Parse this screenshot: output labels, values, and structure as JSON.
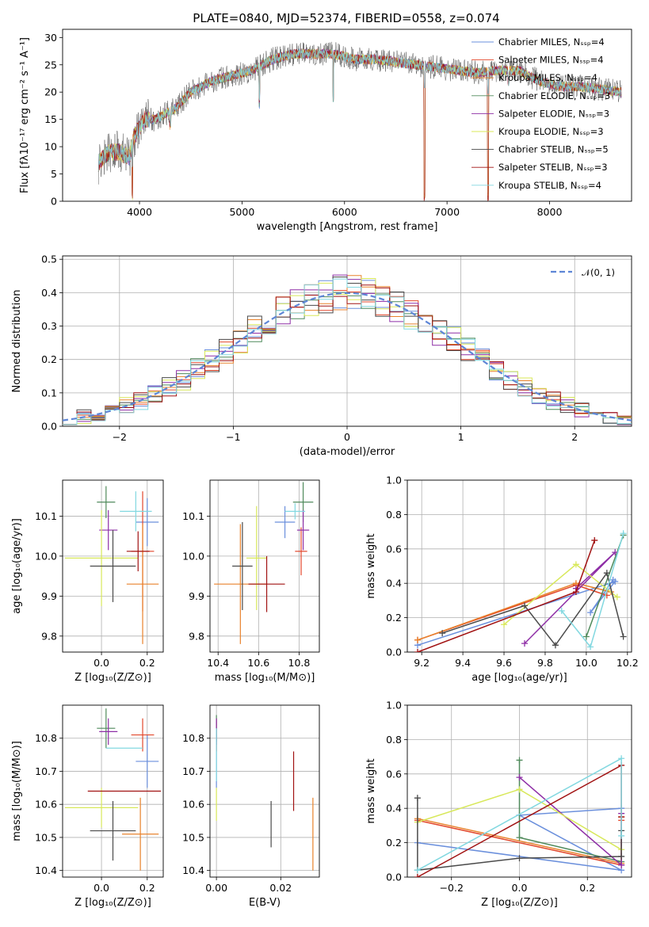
{
  "title": "PLATE=0840, MJD=52374, FIBERID=0558, z=0.074",
  "colors": [
    "#6a8fdc",
    "#e2472b",
    "#e8822b",
    "#4f8a5b",
    "#8e2ea6",
    "#d8e85a",
    "#4a4a4a",
    "#a11212",
    "#82d8e0"
  ],
  "chart_data": [
    {
      "id": "spectrum",
      "type": "line",
      "xlabel": "wavelength [Angstrom, rest frame]",
      "ylabel": "Flux [fλ10⁻¹⁷ erg cm⁻² s⁻¹ A⁻¹]",
      "xlim": [
        3250,
        8800
      ],
      "ylim": [
        0,
        31.5
      ],
      "xticks": [
        4000,
        5000,
        6000,
        7000,
        8000
      ],
      "yticks": [
        0,
        5,
        10,
        15,
        20,
        25,
        30
      ],
      "grid": false,
      "legend_position": "upper-right",
      "series": [
        {
          "name": "Chabrier MILES, Nₛₛₚ=4"
        },
        {
          "name": "Salpeter MILES, Nₛₛₚ=4"
        },
        {
          "name": "Kroupa MILES, Nₛₛₚ=4"
        },
        {
          "name": "Chabrier ELODIE, Nₛₛₚ=3"
        },
        {
          "name": "Salpeter ELODIE, Nₛₛₚ=3"
        },
        {
          "name": "Kroupa ELODIE, Nₛₛₚ=3"
        },
        {
          "name": "Chabrier STELIB, Nₛₛₚ=5"
        },
        {
          "name": "Salpeter STELIB, Nₛₛₚ=3"
        },
        {
          "name": "Kroupa STELIB, Nₛₛₚ=4"
        }
      ],
      "continuum": [
        [
          3600,
          7
        ],
        [
          3700,
          9
        ],
        [
          3800,
          9
        ],
        [
          3900,
          8
        ],
        [
          3950,
          12
        ],
        [
          4050,
          15
        ],
        [
          4150,
          15
        ],
        [
          4250,
          16
        ],
        [
          4350,
          17
        ],
        [
          4500,
          20
        ],
        [
          4700,
          22
        ],
        [
          4900,
          23
        ],
        [
          5100,
          24
        ],
        [
          5300,
          26
        ],
        [
          5500,
          27
        ],
        [
          5700,
          27
        ],
        [
          5900,
          27
        ],
        [
          6100,
          26
        ],
        [
          6300,
          26
        ],
        [
          6500,
          25.5
        ],
        [
          6700,
          25
        ],
        [
          6900,
          24.5
        ],
        [
          7100,
          24
        ],
        [
          7300,
          23.5
        ],
        [
          7500,
          24
        ],
        [
          7700,
          24
        ],
        [
          7900,
          22
        ],
        [
          8100,
          21
        ],
        [
          8300,
          21
        ],
        [
          8500,
          20.5
        ],
        [
          8700,
          20
        ]
      ],
      "dips": [
        [
          3930,
          0
        ],
        [
          4300,
          13
        ],
        [
          5170,
          17
        ],
        [
          5890,
          18
        ],
        [
          6780,
          0
        ],
        [
          7400,
          0
        ],
        [
          7600,
          21
        ]
      ]
    },
    {
      "id": "residuals",
      "type": "line",
      "xlabel": "(data-model)/error",
      "ylabel": "Normed distribution",
      "xlim": [
        -2.5,
        2.5
      ],
      "ylim": [
        0,
        0.51
      ],
      "xticks": [
        -2,
        -1,
        0,
        1,
        2
      ],
      "yticks": [
        0.0,
        0.1,
        0.2,
        0.3,
        0.4,
        0.5
      ],
      "grid": true,
      "legend_position": "upper-right",
      "normal_label": "𝒩(0, 1)",
      "normal": {
        "mu": 0,
        "sigma": 1
      }
    },
    {
      "id": "age-vs-Z",
      "type": "scatter",
      "xlabel": "Z [log₁₀(Z/Z⊙)]",
      "ylabel": "age  [log₁₀(age/yr)]",
      "xlim": [
        -0.17,
        0.27
      ],
      "ylim": [
        9.76,
        10.19
      ],
      "xticks": [
        0.0,
        0.2
      ],
      "yticks": [
        9.8,
        9.9,
        10.0,
        10.1
      ],
      "grid": true,
      "points": [
        {
          "x": 0.2,
          "y": 10.085,
          "xerr": 0.05,
          "yerr": 0.06
        },
        {
          "x": 0.18,
          "y": 10.012,
          "xerr": 0.05,
          "yerr": 0.15
        },
        {
          "x": 0.18,
          "y": 9.93,
          "xerr": 0.07,
          "yerr": 0.15
        },
        {
          "x": 0.02,
          "y": 10.135,
          "xerr": 0.04,
          "yerr": 0.04
        },
        {
          "x": 0.03,
          "y": 10.065,
          "xerr": 0.04,
          "yerr": 0.05
        },
        {
          "x": 0.0,
          "y": 9.995,
          "xerr": 0.16,
          "yerr": 0.12
        },
        {
          "x": 0.05,
          "y": 9.975,
          "xerr": 0.1,
          "yerr": 0.09
        },
        {
          "x": 0.16,
          "y": 10.012,
          "xerr": 0.05,
          "yerr": 0.05
        },
        {
          "x": 0.15,
          "y": 10.112,
          "xerr": 0.07,
          "yerr": 0.05
        }
      ]
    },
    {
      "id": "age-vs-mass",
      "type": "scatter",
      "xlabel": "mass [log₁₀(M/M⊙)]",
      "ylabel": "",
      "xlim": [
        10.36,
        10.9
      ],
      "ylim": [
        9.76,
        10.19
      ],
      "xticks": [
        10.4,
        10.6,
        10.8
      ],
      "yticks": [
        9.8,
        9.9,
        10.0,
        10.1
      ],
      "grid": true,
      "points": [
        {
          "x": 10.73,
          "y": 10.085,
          "xerr": 0.05,
          "yerr": 0.04
        },
        {
          "x": 10.81,
          "y": 10.012,
          "xerr": 0.03,
          "yerr": 0.06
        },
        {
          "x": 10.51,
          "y": 9.93,
          "xerr": 0.13,
          "yerr": 0.15
        },
        {
          "x": 10.82,
          "y": 10.135,
          "xerr": 0.05,
          "yerr": 0.05
        },
        {
          "x": 10.82,
          "y": 10.065,
          "xerr": 0.03,
          "yerr": 0.05
        },
        {
          "x": 10.59,
          "y": 9.995,
          "xerr": 0.05,
          "yerr": 0.13
        },
        {
          "x": 10.52,
          "y": 9.975,
          "xerr": 0.05,
          "yerr": 0.11
        },
        {
          "x": 10.64,
          "y": 9.93,
          "xerr": 0.09,
          "yerr": 0.07
        },
        {
          "x": 10.78,
          "y": 10.112,
          "xerr": 0.05,
          "yerr": 0.02
        }
      ]
    },
    {
      "id": "weight-vs-age",
      "type": "line",
      "xlabel": "age  [log₁₀(age/yr)]",
      "ylabel": "mass weight",
      "xlim": [
        9.13,
        10.22
      ],
      "ylim": [
        0,
        1.0
      ],
      "xticks": [
        9.2,
        9.4,
        9.6,
        9.8,
        10.0,
        10.2
      ],
      "yticks": [
        0.0,
        0.2,
        0.4,
        0.6,
        0.8,
        1.0
      ],
      "grid": true,
      "series": [
        {
          "points": [
            [
              9.18,
              0.04
            ],
            [
              10.14,
              0.41
            ],
            [
              10.02,
              0.23
            ],
            [
              10.13,
              0.42
            ]
          ]
        },
        {
          "points": [
            [
              9.18,
              0.07
            ],
            [
              9.95,
              0.39
            ],
            [
              10.1,
              0.33
            ]
          ]
        },
        {
          "points": [
            [
              9.18,
              0.07
            ],
            [
              9.95,
              0.4
            ],
            [
              10.12,
              0.35
            ]
          ]
        },
        {
          "points": [
            [
              10.0,
              0.09
            ],
            [
              10.18,
              0.68
            ]
          ]
        },
        {
          "points": [
            [
              9.7,
              0.05
            ],
            [
              10.14,
              0.58
            ],
            [
              9.95,
              0.37
            ]
          ]
        },
        {
          "points": [
            [
              9.6,
              0.16
            ],
            [
              9.95,
              0.51
            ],
            [
              10.15,
              0.32
            ]
          ]
        },
        {
          "points": [
            [
              9.3,
              0.11
            ],
            [
              9.7,
              0.27
            ],
            [
              9.85,
              0.04
            ],
            [
              10.1,
              0.46
            ],
            [
              10.18,
              0.09
            ]
          ]
        },
        {
          "points": [
            [
              9.18,
              0.0
            ],
            [
              9.95,
              0.35
            ],
            [
              10.04,
              0.65
            ]
          ]
        },
        {
          "points": [
            [
              9.88,
              0.24
            ],
            [
              10.02,
              0.03
            ],
            [
              10.18,
              0.69
            ]
          ]
        }
      ]
    },
    {
      "id": "mass-vs-Z",
      "type": "scatter",
      "xlabel": "Z [log₁₀(Z/Z⊙)]",
      "ylabel": "mass [log₁₀(M/M⊙)]",
      "xlim": [
        -0.17,
        0.27
      ],
      "ylim": [
        10.38,
        10.9
      ],
      "xticks": [
        0.0,
        0.2
      ],
      "yticks": [
        10.4,
        10.5,
        10.6,
        10.7,
        10.8
      ],
      "grid": true,
      "points": [
        {
          "x": 0.2,
          "y": 10.73,
          "xerr": 0.05,
          "yerr": 0.08
        },
        {
          "x": 0.18,
          "y": 10.81,
          "xerr": 0.05,
          "yerr": 0.05
        },
        {
          "x": 0.17,
          "y": 10.51,
          "xerr": 0.08,
          "yerr": 0.11
        },
        {
          "x": 0.02,
          "y": 10.83,
          "xerr": 0.04,
          "yerr": 0.06
        },
        {
          "x": 0.03,
          "y": 10.82,
          "xerr": 0.04,
          "yerr": 0.04
        },
        {
          "x": 0.0,
          "y": 10.59,
          "xerr": 0.16,
          "yerr": 0.06
        },
        {
          "x": 0.05,
          "y": 10.52,
          "xerr": 0.1,
          "yerr": 0.09
        },
        {
          "x": 0.1,
          "y": 10.64,
          "xerr": 0.16,
          "yerr": 0.0
        },
        {
          "x": 0.1,
          "y": 10.77,
          "xerr": 0.08,
          "yerr": 0.0
        }
      ]
    },
    {
      "id": "mass-vs-EBV",
      "type": "scatter",
      "xlabel": "E(B-V)",
      "ylabel": "",
      "xlim": [
        -0.002,
        0.032
      ],
      "ylim": [
        10.38,
        10.9
      ],
      "xticks": [
        0.0,
        0.02
      ],
      "yticks": [
        10.4,
        10.5,
        10.6,
        10.7,
        10.8
      ],
      "grid": true,
      "points": [
        {
          "x": 0.0,
          "y": 10.73,
          "xerr": 0,
          "yerr": 0.08
        },
        {
          "x": 0.0,
          "y": 10.81,
          "xerr": 0,
          "yerr": 0.05
        },
        {
          "x": 0.03,
          "y": 10.51,
          "xerr": 0,
          "yerr": 0.11
        },
        {
          "x": 0.0,
          "y": 10.83,
          "xerr": 0,
          "yerr": 0.04
        },
        {
          "x": 0.0,
          "y": 10.82,
          "xerr": 0,
          "yerr": 0.04
        },
        {
          "x": 0.0,
          "y": 10.6,
          "xerr": 0,
          "yerr": 0.05
        },
        {
          "x": 0.017,
          "y": 10.54,
          "xerr": 0,
          "yerr": 0.07
        },
        {
          "x": 0.024,
          "y": 10.67,
          "xerr": 0,
          "yerr": 0.09
        },
        {
          "x": 0.0,
          "y": 10.75,
          "xerr": 0,
          "yerr": 0.08
        }
      ]
    },
    {
      "id": "weight-vs-Z",
      "type": "line",
      "xlabel": "Z [log₁₀(Z/Z⊙)]",
      "ylabel": "mass weight",
      "xlim": [
        -0.33,
        0.33
      ],
      "ylim": [
        0,
        1.0
      ],
      "xticks": [
        -0.2,
        0.0,
        0.2
      ],
      "yticks": [
        0.0,
        0.2,
        0.4,
        0.6,
        0.8,
        1.0
      ],
      "grid": true,
      "series": [
        {
          "points": [
            [
              -0.3,
              0.2
            ],
            [
              0.3,
              0.04
            ],
            [
              0.0,
              0.36
            ],
            [
              0.3,
              0.4
            ]
          ]
        },
        {
          "points": [
            [
              -0.3,
              0.33
            ],
            [
              0.3,
              0.07
            ],
            [
              0.3,
              0.33
            ]
          ]
        },
        {
          "points": [
            [
              -0.3,
              0.34
            ],
            [
              0.3,
              0.08
            ],
            [
              0.3,
              0.35
            ]
          ]
        },
        {
          "points": [
            [
              0.0,
              0.68
            ],
            [
              0.0,
              0.23
            ],
            [
              0.3,
              0.09
            ]
          ]
        },
        {
          "points": [
            [
              0.0,
              0.58
            ],
            [
              0.3,
              0.07
            ],
            [
              0.3,
              0.37
            ]
          ]
        },
        {
          "points": [
            [
              -0.3,
              0.32
            ],
            [
              0.0,
              0.51
            ],
            [
              0.3,
              0.16
            ]
          ]
        },
        {
          "points": [
            [
              -0.3,
              0.46
            ],
            [
              -0.3,
              0.04
            ],
            [
              0.0,
              0.11
            ],
            [
              0.3,
              0.12
            ],
            [
              0.3,
              0.27
            ]
          ]
        },
        {
          "points": [
            [
              -0.3,
              0.0
            ],
            [
              0.3,
              0.65
            ],
            [
              0.3,
              0.35
            ]
          ]
        },
        {
          "points": [
            [
              -0.3,
              0.04
            ],
            [
              0.3,
              0.69
            ],
            [
              0.3,
              0.24
            ]
          ]
        }
      ]
    }
  ]
}
